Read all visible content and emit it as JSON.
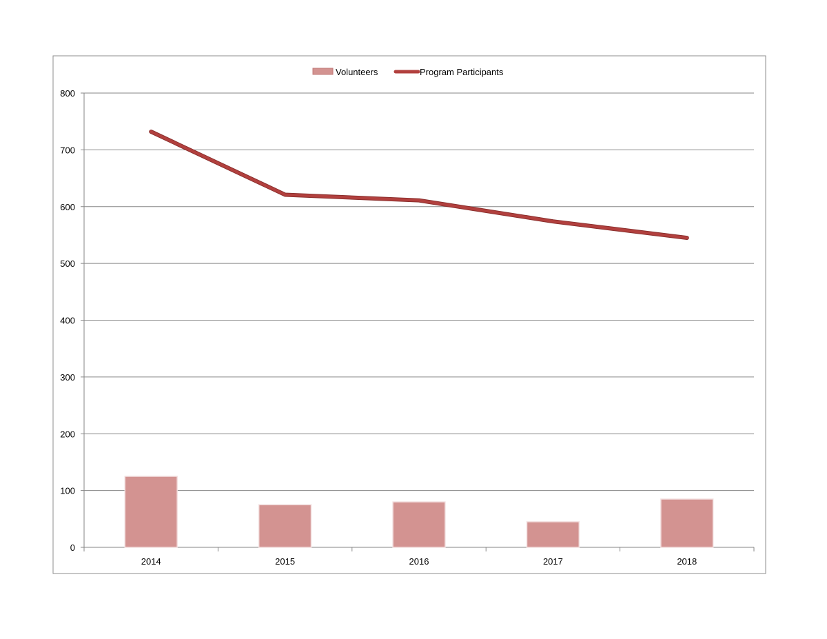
{
  "chart_data": {
    "type": "bar",
    "categories": [
      "2014",
      "2015",
      "2016",
      "2017",
      "2018"
    ],
    "series": [
      {
        "name": "Volunteers",
        "type": "bar",
        "values": [
          125,
          75,
          80,
          45,
          85
        ],
        "color": "#d39391"
      },
      {
        "name": "Program Participants",
        "type": "line",
        "values": [
          732,
          621,
          611,
          574,
          545
        ],
        "color": "#b2403e"
      }
    ],
    "y_ticks": [
      "0",
      "100",
      "200",
      "300",
      "400",
      "500",
      "600",
      "700",
      "800"
    ],
    "ylim": [
      0,
      800
    ],
    "grid": true,
    "legend_position": "top-center",
    "title": "",
    "xlabel": "",
    "ylabel": ""
  }
}
